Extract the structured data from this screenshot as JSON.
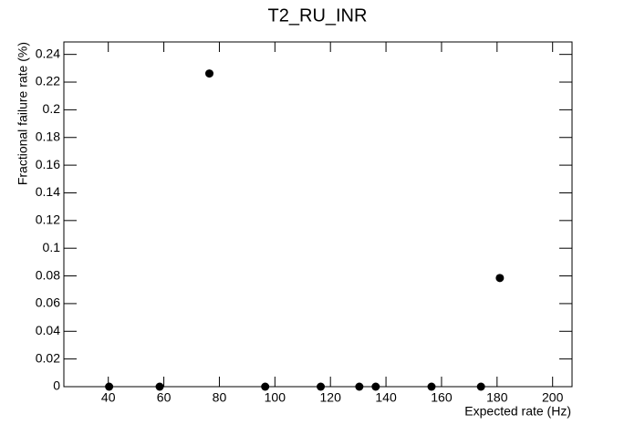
{
  "chart_data": {
    "type": "scatter",
    "title": "T2_RU_INR",
    "x_label": "Expected rate (Hz)",
    "y_label": "Fractional failure rate (%)",
    "x": [
      40.3,
      58.5,
      76.4,
      96.5,
      116.5,
      130.4,
      136.3,
      156.4,
      174.2,
      181
    ],
    "values": [
      0,
      0,
      0.2262,
      0,
      0,
      0,
      0,
      0,
      0,
      0.0785
    ],
    "color": "#000000",
    "xlim": [
      24,
      207
    ],
    "ylim": [
      0,
      0.249
    ],
    "xticks": [
      40,
      60,
      80,
      100,
      120,
      140,
      160,
      180,
      200
    ],
    "yticks": [
      0,
      0.02,
      0.04,
      0.06,
      0.08,
      0.1,
      0.12,
      0.14,
      0.16,
      0.18,
      0.2,
      0.22,
      0.24
    ]
  }
}
